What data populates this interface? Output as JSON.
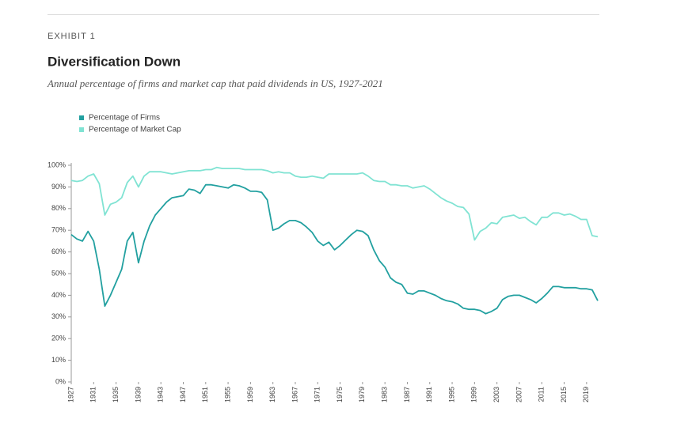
{
  "chart_data": {
    "type": "line",
    "label": "EXHIBIT 1",
    "title": "Diversification Down",
    "subtitle": "Annual percentage of firms and market cap that paid dividends in US, 1927-2021",
    "x": [
      1927,
      1928,
      1929,
      1930,
      1931,
      1932,
      1933,
      1934,
      1935,
      1936,
      1937,
      1938,
      1939,
      1940,
      1941,
      1942,
      1943,
      1944,
      1945,
      1946,
      1947,
      1948,
      1949,
      1950,
      1951,
      1952,
      1953,
      1954,
      1955,
      1956,
      1957,
      1958,
      1959,
      1960,
      1961,
      1962,
      1963,
      1964,
      1965,
      1966,
      1967,
      1968,
      1969,
      1970,
      1971,
      1972,
      1973,
      1974,
      1975,
      1976,
      1977,
      1978,
      1979,
      1980,
      1981,
      1982,
      1983,
      1984,
      1985,
      1986,
      1987,
      1988,
      1989,
      1990,
      1991,
      1992,
      1993,
      1994,
      1995,
      1996,
      1997,
      1998,
      1999,
      2000,
      2001,
      2002,
      2003,
      2004,
      2005,
      2006,
      2007,
      2008,
      2009,
      2010,
      2011,
      2012,
      2013,
      2014,
      2015,
      2016,
      2017,
      2018,
      2019,
      2020,
      2021
    ],
    "series": [
      {
        "name": "Percentage of Firms",
        "color": "#22a0a0",
        "values": [
          68,
          66,
          65,
          69.5,
          65,
          52,
          35,
          40,
          46,
          52,
          65,
          69,
          55,
          65,
          72,
          77,
          80,
          83,
          85,
          85.5,
          86,
          89,
          88.5,
          87,
          91,
          91,
          90.5,
          90,
          89.5,
          91,
          90.5,
          89.5,
          88,
          88,
          87.5,
          84,
          70,
          71,
          73,
          74.5,
          74.5,
          73.5,
          71.5,
          69,
          65,
          63,
          64.5,
          61,
          63,
          65.5,
          68,
          70,
          69.5,
          67.5,
          61,
          56,
          53,
          48,
          46,
          45,
          41,
          40.5,
          42,
          42,
          41,
          40,
          38.5,
          37.5,
          37,
          36,
          34,
          33.5,
          33.5,
          33,
          31.5,
          32.5,
          34,
          38,
          39.5,
          40,
          40,
          39,
          38,
          36.5,
          38.5,
          41,
          44,
          44,
          43.5,
          43.5,
          43.5,
          43,
          43,
          42.5,
          37.5
        ]
      },
      {
        "name": "Percentage of Market Cap",
        "color": "#80e3d3",
        "values": [
          93,
          92.5,
          93,
          95,
          96,
          91.5,
          77,
          82,
          83,
          85,
          92,
          95,
          90,
          95,
          97,
          97,
          97,
          96.5,
          96,
          96.5,
          97,
          97.5,
          97.5,
          97.5,
          98,
          98,
          99,
          98.5,
          98.5,
          98.5,
          98.5,
          98,
          98,
          98,
          98,
          97.5,
          96.5,
          97,
          96.5,
          96.5,
          95,
          94.5,
          94.5,
          95,
          94.5,
          94,
          96,
          96,
          96,
          96,
          96,
          96,
          96.5,
          95,
          93,
          92.5,
          92.5,
          91,
          91,
          90.5,
          90.5,
          89.5,
          90,
          90.5,
          89,
          87,
          85,
          83.5,
          82.5,
          81,
          80.5,
          77.5,
          65.5,
          69.5,
          71,
          73.5,
          73,
          76,
          76.5,
          77,
          75.5,
          76,
          74,
          72.5,
          76,
          76,
          78,
          78,
          77,
          77.5,
          76.5,
          75,
          75,
          67.5,
          67
        ]
      }
    ],
    "xlim": [
      1927,
      2021
    ],
    "xticks": [
      1927,
      1931,
      1935,
      1939,
      1943,
      1947,
      1951,
      1955,
      1959,
      1963,
      1967,
      1971,
      1975,
      1979,
      1983,
      1987,
      1991,
      1995,
      1999,
      2003,
      2007,
      2011,
      2015,
      2019
    ],
    "ylim": [
      0,
      100
    ],
    "yticks": [
      {
        "value": 0,
        "label": "0%"
      },
      {
        "value": 10,
        "label": "10%"
      },
      {
        "value": 20,
        "label": "20%"
      },
      {
        "value": 30,
        "label": "30%"
      },
      {
        "value": 40,
        "label": "40%"
      },
      {
        "value": 50,
        "label": "50%"
      },
      {
        "value": 60,
        "label": "60%"
      },
      {
        "value": 70,
        "label": "70%"
      },
      {
        "value": 80,
        "label": "80%"
      },
      {
        "value": 90,
        "label": "90%"
      },
      {
        "value": 100,
        "label": "100%"
      }
    ]
  }
}
